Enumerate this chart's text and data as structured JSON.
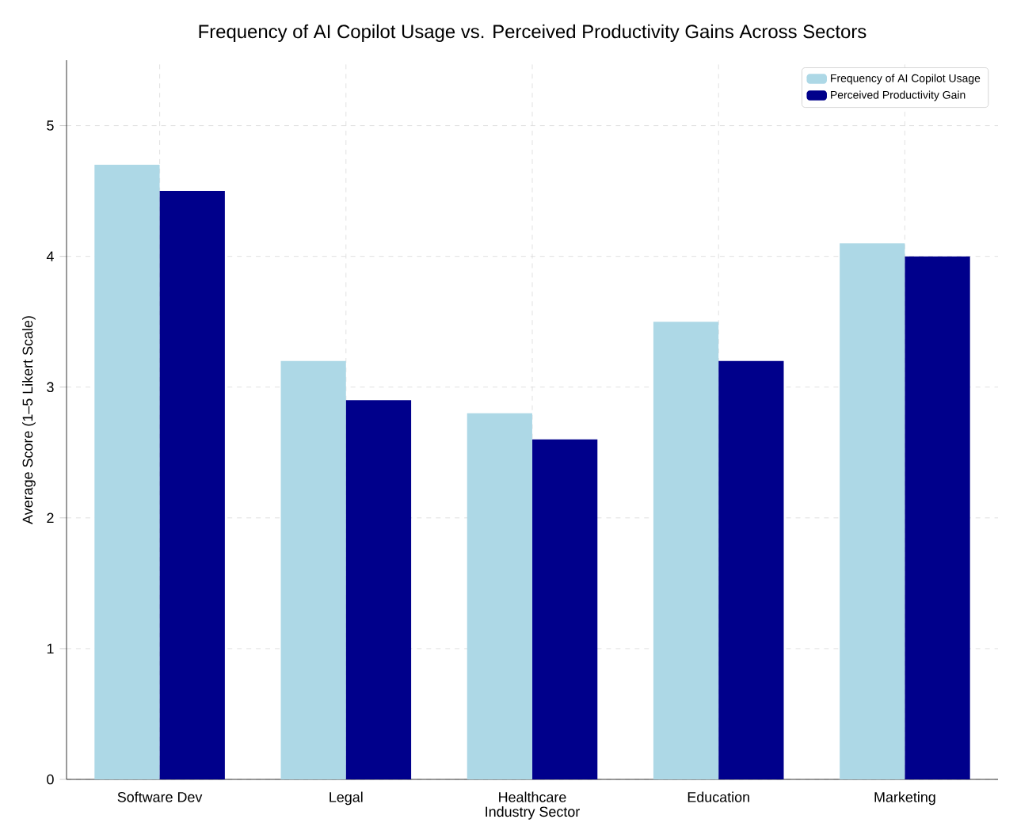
{
  "chart_data": {
    "type": "bar",
    "title": "Frequency of AI Copilot Usage vs. Perceived Productivity Gains Across Sectors",
    "xlabel": "Industry Sector",
    "ylabel": "Average Score (1–5 Likert Scale)",
    "categories": [
      "Software Dev",
      "Legal",
      "Healthcare",
      "Education",
      "Marketing"
    ],
    "series": [
      {
        "name": "Frequency of AI Copilot Usage",
        "color": "#add8e6",
        "values": [
          4.7,
          3.2,
          2.8,
          3.5,
          4.1
        ]
      },
      {
        "name": "Perceived Productivity Gain",
        "color": "#00008b",
        "values": [
          4.5,
          2.9,
          2.6,
          3.2,
          4.0
        ]
      }
    ],
    "ylim": [
      0,
      5.5
    ],
    "yticks": [
      0,
      1,
      2,
      3,
      4,
      5
    ],
    "grid": true,
    "legend": "top right"
  }
}
